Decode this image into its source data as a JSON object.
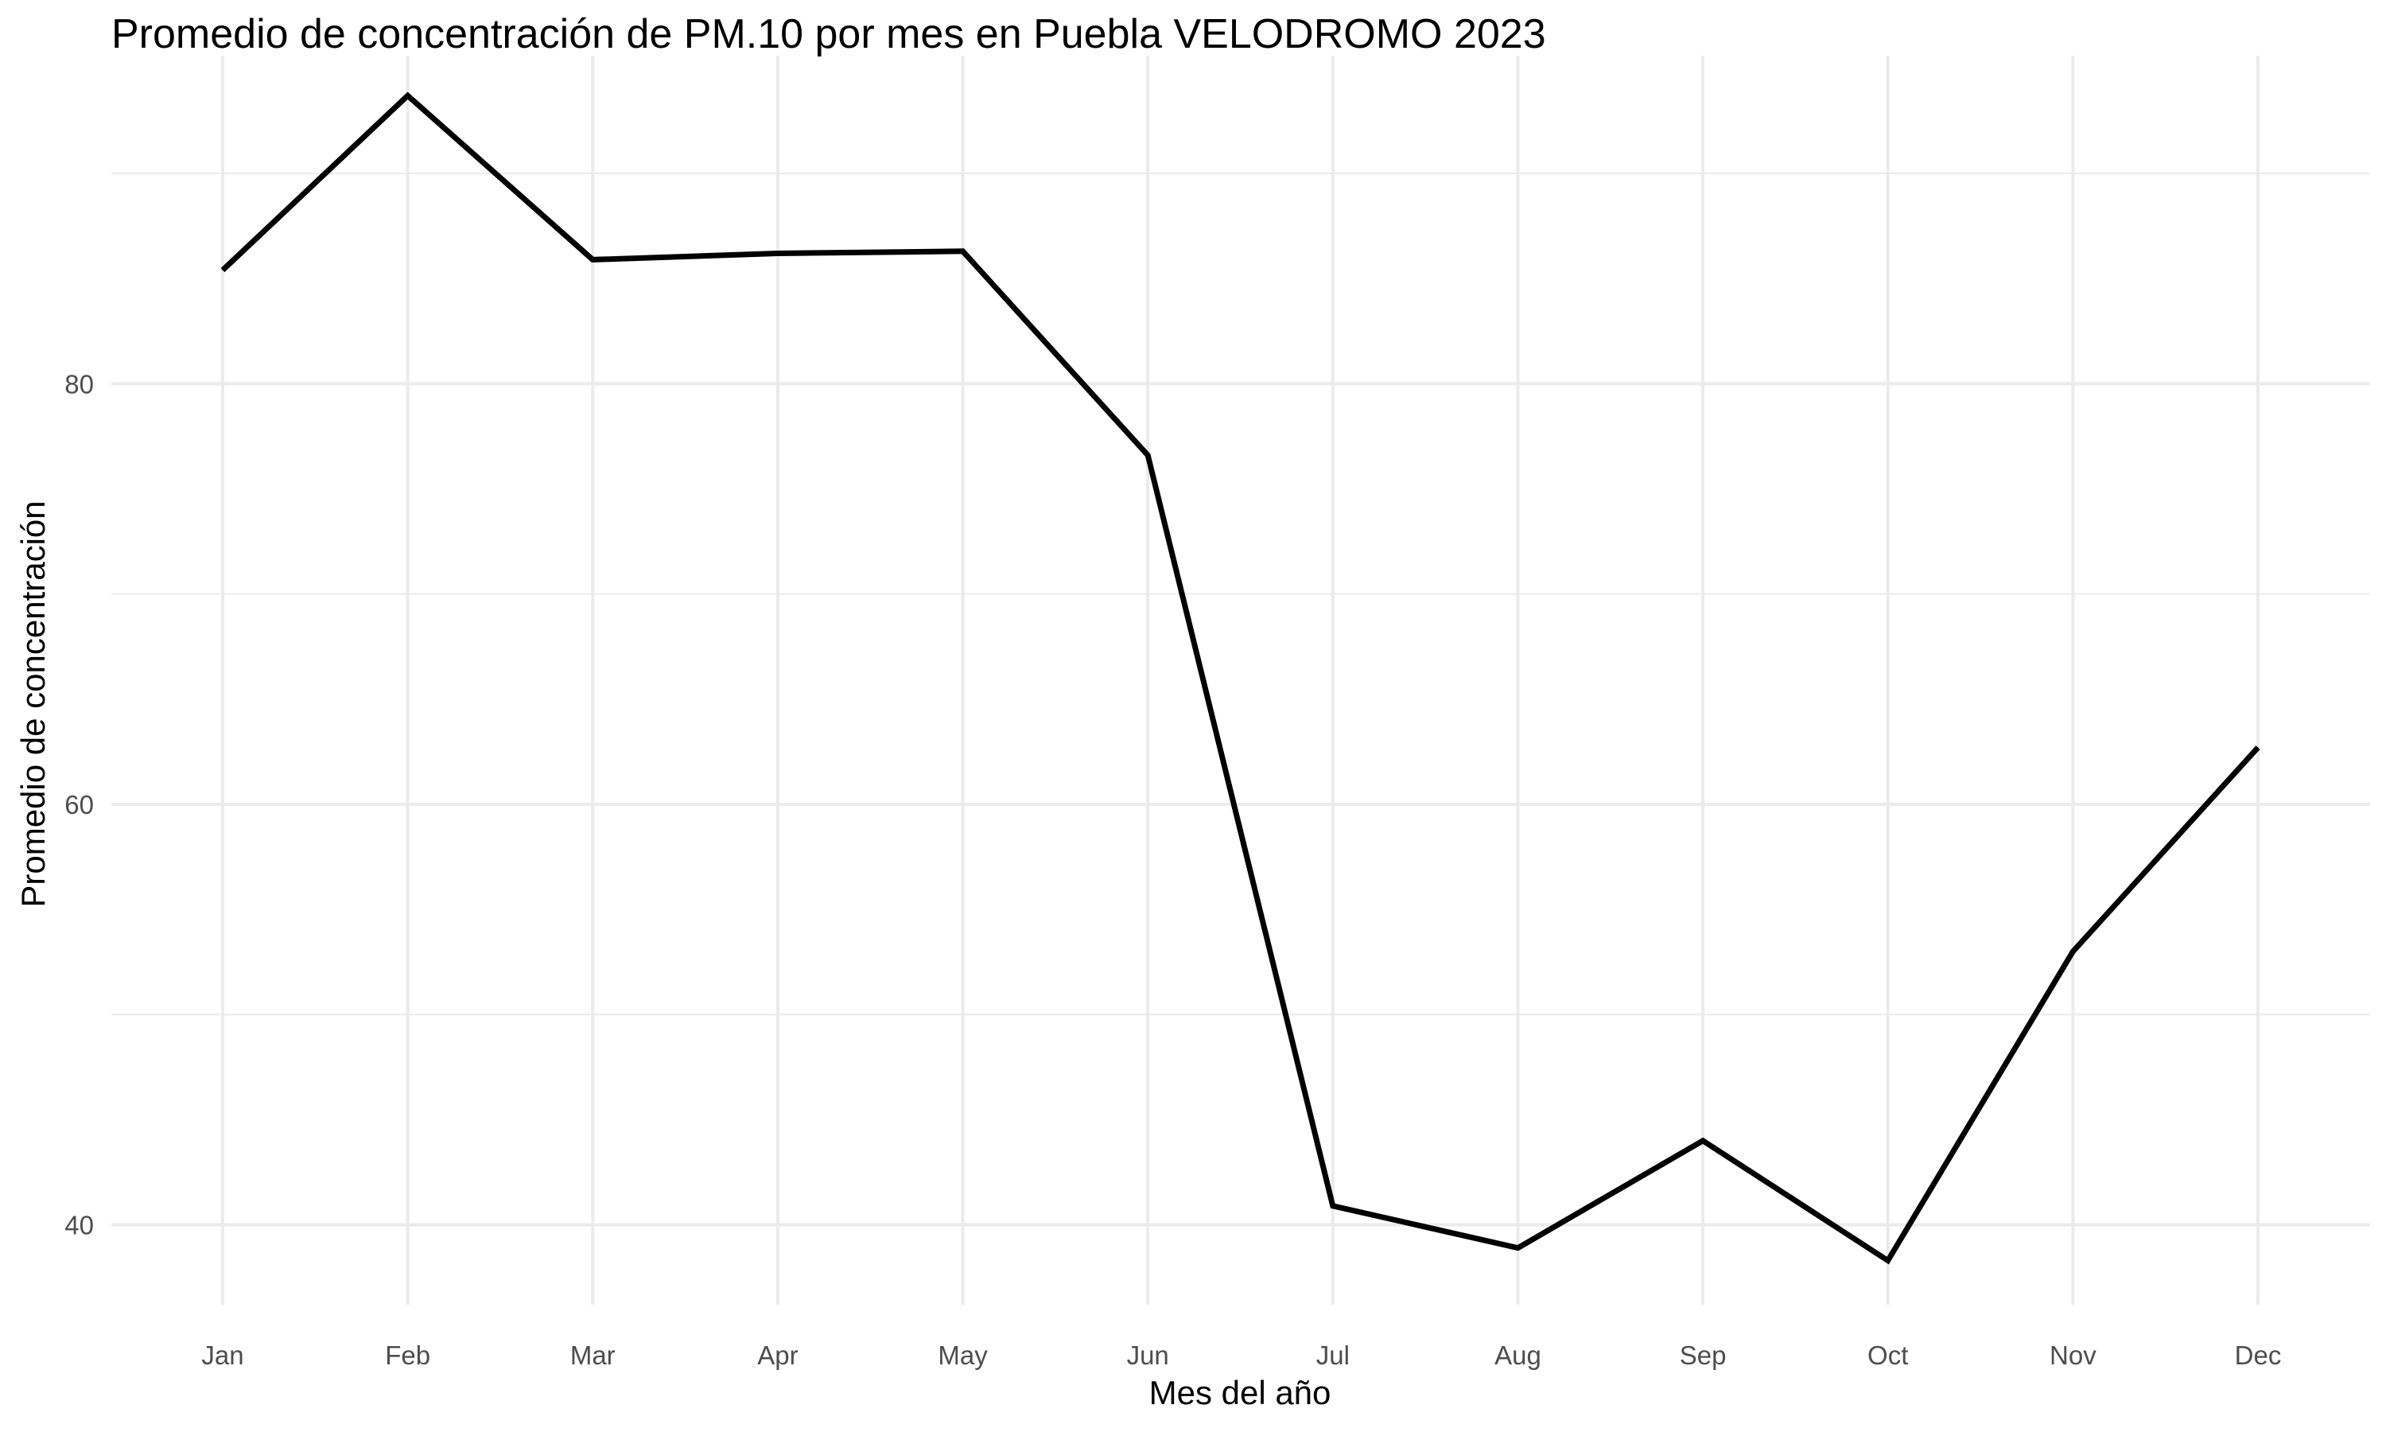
{
  "chart_data": {
    "type": "line",
    "title": "Promedio de concentración de PM.10 por mes en Puebla VELODROMO 2023",
    "xlabel": "Mes del año",
    "ylabel": "Promedio de concentración",
    "categories": [
      "Jan",
      "Feb",
      "Mar",
      "Apr",
      "May",
      "Jun",
      "Jul",
      "Aug",
      "Sep",
      "Oct",
      "Nov",
      "Dec"
    ],
    "series": [
      {
        "values": [
          85.4,
          93.7,
          85.9,
          86.2,
          86.3,
          76.6,
          40.9,
          38.9,
          44.0,
          38.3,
          53.0,
          62.7
        ],
        "color": "#000000"
      }
    ],
    "ylim": [
      36.2,
      95.6
    ],
    "y_ticks": [
      40,
      60,
      80
    ],
    "y_minor_ticks": [
      50,
      70,
      90
    ],
    "grid": true,
    "grid_color": "#ebebeb",
    "legend": "none"
  }
}
